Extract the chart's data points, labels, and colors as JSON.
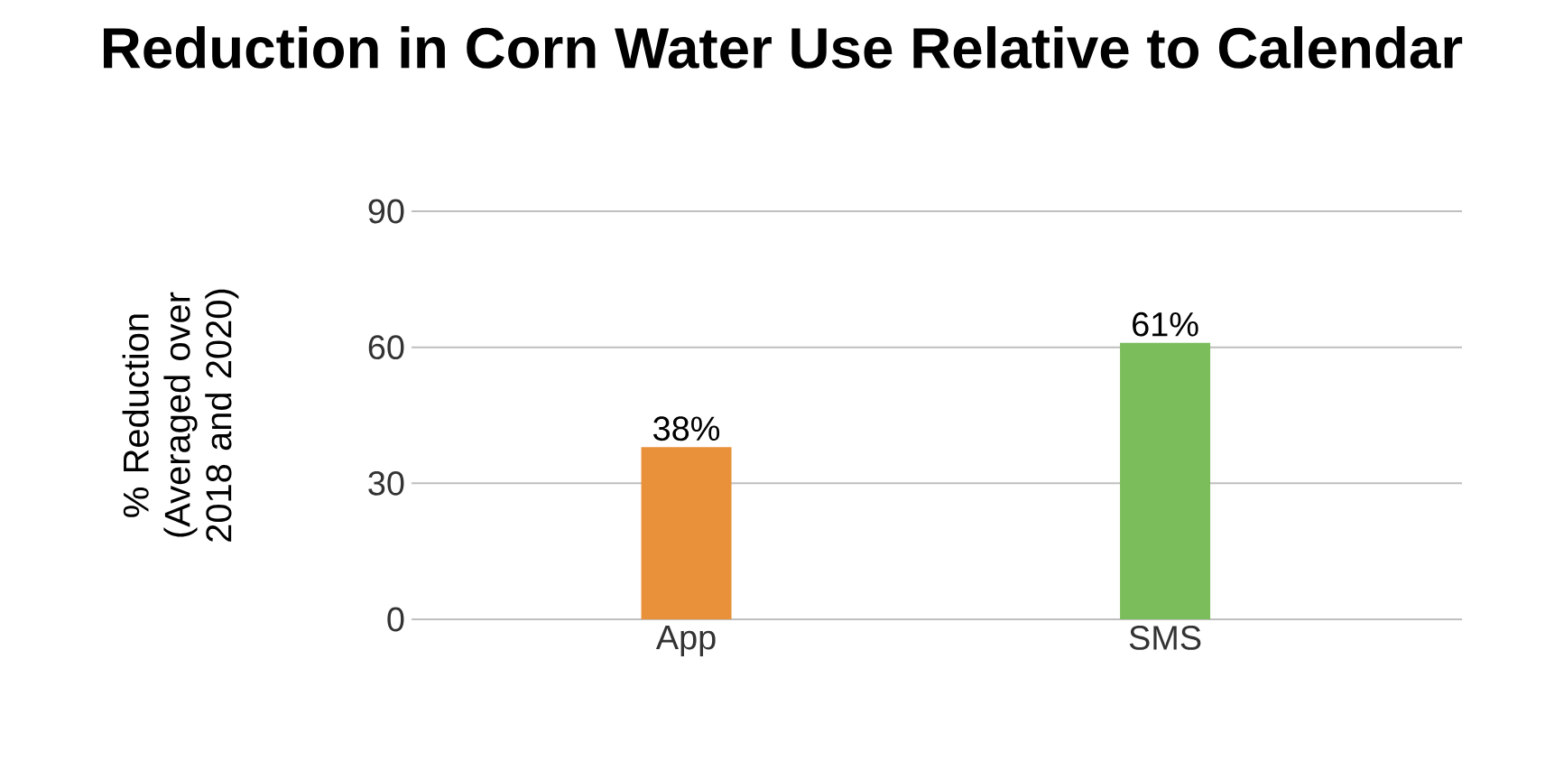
{
  "chart_data": {
    "type": "bar",
    "title": "Reduction in Corn Water Use Relative to Calendar",
    "ylabel": "% Reduction (Averaged over 2018 and 2020)",
    "categories": [
      "App",
      "SMS"
    ],
    "values": [
      38,
      61
    ],
    "colors": [
      "#e8913a",
      "#7cbd5b"
    ],
    "value_labels": [
      "38%",
      "61%"
    ],
    "ylim": [
      0,
      90
    ],
    "yticks": [
      0,
      30,
      60,
      90
    ],
    "grid": "y"
  }
}
